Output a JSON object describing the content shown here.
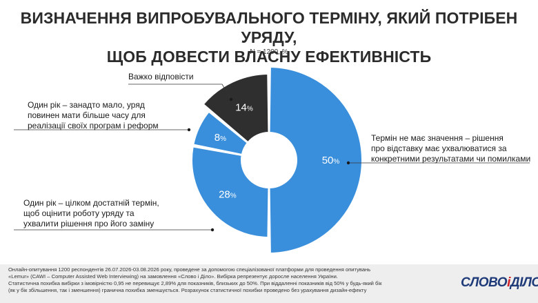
{
  "title_line1": "ВИЗНАЧЕННЯ ВИПРОБУВАЛЬНОГО ТЕРМІНУ, ЯКИЙ ПОТРІБЕН УРЯДУ,",
  "title_line2": "ЩОБ ДОВЕСТИ ВЛАСНУ ЕФЕКТИВНІСТЬ",
  "subtitle": "N = 1200, %",
  "chart_data": {
    "type": "pie",
    "donut": true,
    "categories": [
      "Термін не має значення – рішення про відставку має ухвалюватися за конкретними результатами чи помилками",
      "Один рік – цілком достатній термін, щоб оцінити роботу уряду та ухвалити рішення про його заміну",
      "Один рік – занадто мало, уряд повинен мати більше часу для реалізації своїх програм і реформ",
      "Важко відповісти"
    ],
    "values": [
      50,
      28,
      8,
      14
    ],
    "value_labels": [
      "50",
      "28",
      "8",
      "14"
    ],
    "unit": "%",
    "colors": [
      "#3a8fdc",
      "#3a8fdc",
      "#3a8fdc",
      "#2f2f2f"
    ]
  },
  "labels": {
    "l50": [
      "Термін не має значення – рішення",
      "про відставку має ухвалюватися за",
      "конкретними результатами чи помилками"
    ],
    "l28": [
      "Один рік – цілком достатній термін,",
      "щоб оцінити роботу уряду та",
      "ухвалити рішення про його заміну"
    ],
    "l8": [
      "Один рік – занадто мало, уряд",
      "повинен мати більше часу для",
      "реалізації своїх програм і реформ"
    ],
    "l14": [
      "Важко відповісти"
    ]
  },
  "footer": {
    "lines": [
      "Онлайн-опитування 1200 респондентів 26.07.2026-03.08.2026 року, проведене за допомогою спеціалізованої платформи для проведення опитувань",
      "«Lemur» (CAWI – Computer Assisted Web Interviewing) на замовлення «Слово і Діло». Вибірка репрезентує доросле населення України.",
      "Статистична похибка вибірки з імовірністю 0,95 не перевищує 2,89% для показників, близьких до 50%. При віддаленні показників від 50% у будь-який бік",
      "(як у бік збільшення, так і зменшення) гранична похибка зменшується. Розрахунок статистичної похибки проведено без урахування дизайн-ефекту"
    ]
  },
  "logo": {
    "part1": "СЛОВО",
    "amp": "і",
    "part2": "ДІЛО"
  }
}
